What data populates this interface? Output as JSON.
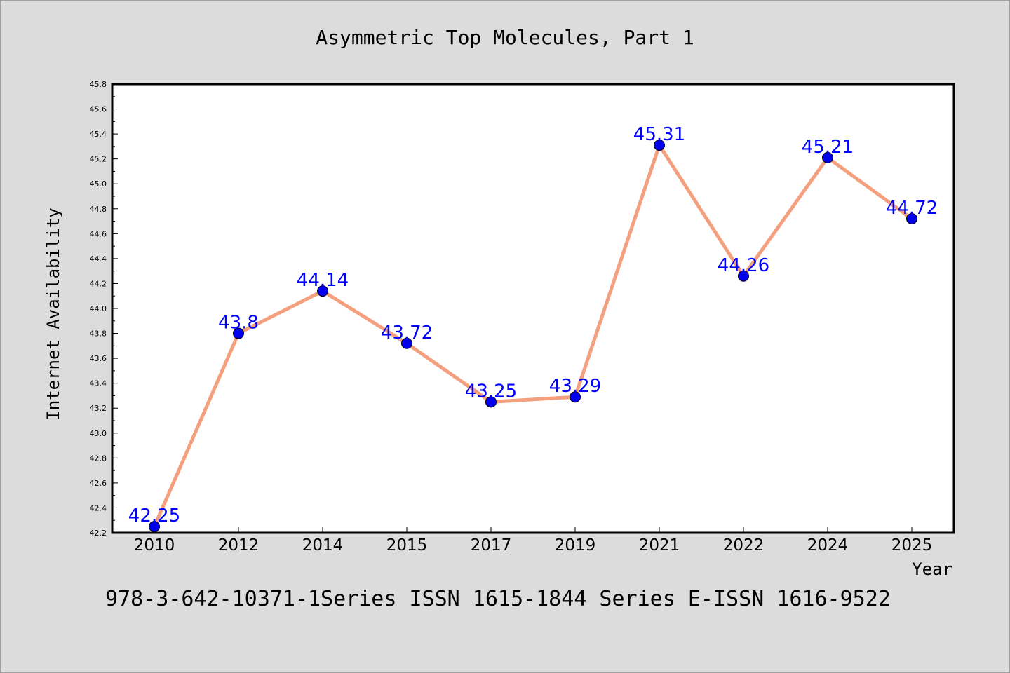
{
  "chart_data": {
    "type": "line",
    "title": "Asymmetric Top Molecules, Part 1",
    "xlabel": "Year",
    "ylabel": "Internet Availability",
    "categories": [
      "2010",
      "2012",
      "2014",
      "2015",
      "2017",
      "2019",
      "2021",
      "2022",
      "2024",
      "2025"
    ],
    "series": [
      {
        "values": [
          42.25,
          43.8,
          44.14,
          43.72,
          43.25,
          43.29,
          45.31,
          44.26,
          45.21,
          44.72
        ],
        "labels": [
          "42.25",
          "43.8",
          "44.14",
          "43.72",
          "43.25",
          "43.29",
          "45.31",
          "44.26",
          "45.21",
          "44.72"
        ],
        "line_color": "#f4a07e",
        "marker_color": "#0000ee"
      }
    ],
    "ylim": [
      42.2,
      45.8
    ],
    "yticks": [
      "42.2",
      "42.4",
      "42.6",
      "42.8",
      "43.0",
      "43.2",
      "43.4",
      "43.6",
      "43.8",
      "44.0",
      "44.2",
      "44.4",
      "44.6",
      "44.8",
      "45.0",
      "45.2",
      "45.4",
      "45.6",
      "45.8"
    ],
    "grid": false,
    "legend": "none"
  },
  "footer": "978-3-642-10371-1Series ISSN 1615-1844 Series E-ISSN 1616-9522",
  "colors": {
    "background": "#dcdcdc",
    "plot_background": "#ffffff",
    "data_label": "#0000ff"
  }
}
